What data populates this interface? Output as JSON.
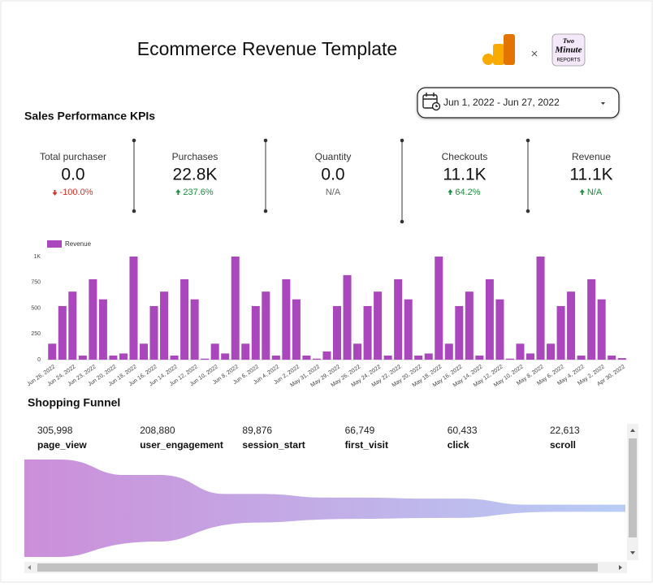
{
  "header": {
    "title": "Ecommerce Revenue Template",
    "separator": "×",
    "logo_text": [
      "Two",
      "Minute",
      "REPORTS"
    ]
  },
  "date_range": "Jun 1, 2022 - Jun 27, 2022",
  "kpi_section": "Sales Performance KPIs",
  "kpis": [
    {
      "name": "Total purchaser",
      "value": "0.0",
      "change": "-100.0%",
      "trend": "down"
    },
    {
      "name": "Purchases",
      "value": "22.8K",
      "change": "237.6%",
      "trend": "up"
    },
    {
      "name": "Quantity",
      "value": "0.0",
      "change": "N/A",
      "trend": null
    },
    {
      "name": "Checkouts",
      "value": "11.1K",
      "change": "64.2%",
      "trend": "up"
    },
    {
      "name": "Revenue",
      "value": "11.1K",
      "change": "N/A",
      "trend": "up"
    }
  ],
  "chart_data": {
    "type": "bar",
    "categories": [
      "Jun 26, 2022",
      null,
      "Jun 24, 2022",
      null,
      "Jun 23, 2022",
      null,
      "Jun 20, 2022",
      null,
      "Jun 18, 2022",
      null,
      "Jun 16, 2022",
      null,
      "Jun 14, 2022",
      null,
      "Jun 12, 2022",
      null,
      "Jun 10, 2022",
      null,
      "Jun 8, 2022",
      null,
      "Jun 6, 2022",
      null,
      "Jun 4, 2022",
      null,
      "Jun 2, 2022",
      null,
      "May 31, 2022",
      null,
      "May 29, 2022",
      null,
      "May 26, 2022",
      null,
      "May 24, 2022",
      null,
      "May 22, 2022",
      null,
      "May 20, 2022",
      null,
      "May 18, 2022",
      null,
      "May 16, 2022",
      null,
      "May 14, 2022",
      null,
      "May 12, 2022",
      null,
      "May 10, 2022",
      null,
      "May 8, 2022",
      null,
      "May 6, 2022",
      null,
      "May 4, 2022",
      null,
      "May 2, 2022",
      null,
      "Apr 30, 2022"
    ],
    "series": [
      {
        "name": "Revenue",
        "color": "#ab47bc",
        "values": [
          155,
          520,
          660,
          40,
          780,
          585,
          40,
          60,
          1000,
          155,
          520,
          660,
          40,
          780,
          585,
          10,
          155,
          60,
          1000,
          155,
          520,
          660,
          40,
          780,
          585,
          40,
          10,
          80,
          520,
          820,
          155,
          520,
          660,
          40,
          780,
          585,
          40,
          60,
          1000,
          155,
          520,
          660,
          40,
          780,
          585,
          10,
          155,
          60,
          1000,
          155,
          520,
          660,
          40,
          780,
          585,
          40,
          15
        ]
      }
    ],
    "ylim": [
      0,
      1000
    ],
    "yticks": [
      0,
      250,
      500,
      750,
      {
        "value": 1000,
        "label": "1K"
      }
    ],
    "legend": "top-left"
  },
  "funnel": {
    "title": "Shopping Funnel",
    "names": [
      "page_view",
      "user_engagement",
      "session_start",
      "first_visit",
      "click",
      "scroll"
    ],
    "values": [
      305998,
      208880,
      89876,
      66749,
      60433,
      22613
    ],
    "value_labels": [
      "305,998",
      "208,880",
      "89,876",
      "66,749",
      "60,433",
      "22,613"
    ]
  }
}
